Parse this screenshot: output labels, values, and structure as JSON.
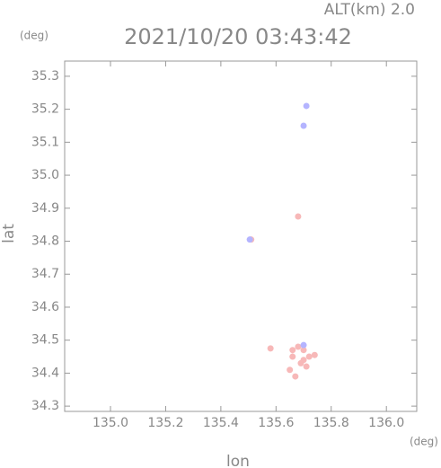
{
  "chart_data": {
    "type": "scatter",
    "title": "2021/10/20 03:43:42",
    "subtitle": "ALT(km) 2.0",
    "xlabel": "lon",
    "ylabel": "lat",
    "x_unit": "(deg)",
    "y_unit": "(deg)",
    "xlim": [
      134.834,
      136.11
    ],
    "ylim": [
      34.284,
      35.346
    ],
    "xticks": [
      {
        "value": 135.0,
        "label": "135.0"
      },
      135.2,
      135.4,
      135.6,
      135.8,
      {
        "value": 136.0,
        "label": "136.0"
      }
    ],
    "yticks": [
      34.3,
      34.4,
      34.5,
      34.6,
      34.7,
      34.8,
      34.9,
      {
        "value": 35.0,
        "label": "35.0"
      },
      35.1,
      35.2,
      35.3
    ],
    "series": [
      {
        "color": "#f7b8b8",
        "x": [
          135.68,
          135.51,
          135.66,
          135.69,
          135.7,
          135.65,
          135.72,
          135.67,
          135.58,
          135.74,
          135.68,
          135.71,
          135.66,
          135.7
        ],
        "values": [
          34.875,
          34.805,
          34.45,
          34.43,
          34.47,
          34.41,
          34.45,
          34.39,
          34.475,
          34.455,
          34.48,
          34.42,
          34.47,
          34.44
        ]
      },
      {
        "color": "#b4b4ff",
        "x": [
          135.71,
          135.7,
          135.7,
          135.505
        ],
        "values": [
          35.21,
          35.15,
          34.485,
          34.805
        ]
      }
    ]
  }
}
